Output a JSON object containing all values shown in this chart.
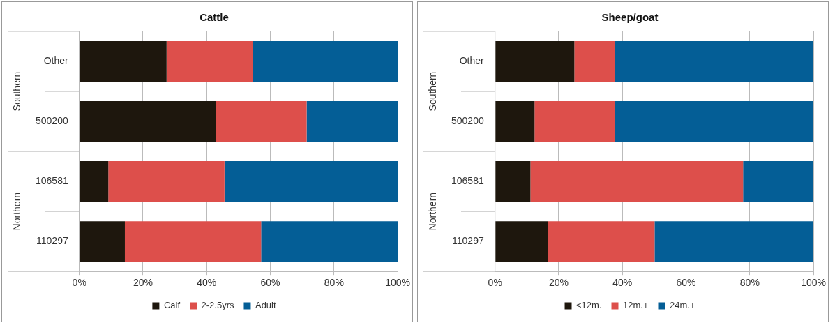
{
  "chart_data": [
    {
      "type": "bar",
      "title": "Cattle",
      "orientation": "horizontal",
      "stacked": true,
      "categories": [
        "Other",
        "500200",
        "106581",
        "110297"
      ],
      "series": [
        {
          "name": "Calf",
          "color": "#1e170d",
          "values": [
            27.4,
            42.9,
            9.1,
            14.3
          ]
        },
        {
          "name": "2-2.5yrs",
          "color": "#dd4f4b",
          "values": [
            27.1,
            28.5,
            36.5,
            42.8
          ]
        },
        {
          "name": "Adult",
          "color": "#045e96",
          "values": [
            45.5,
            28.6,
            54.4,
            42.9
          ]
        }
      ],
      "xlim": [
        0,
        100
      ],
      "xticks": [
        {
          "value": 0,
          "label": "0%"
        },
        {
          "value": 20,
          "label": "20%"
        },
        {
          "value": 40,
          "label": "40%"
        },
        {
          "value": 60,
          "label": "60%"
        },
        {
          "value": 80,
          "label": "80%"
        },
        {
          "value": 100,
          "label": "100%"
        }
      ],
      "annotations": [
        "Southern",
        "Northern"
      ],
      "grid": "x",
      "legend": "bottom"
    },
    {
      "type": "bar",
      "title": "Sheep/goat",
      "orientation": "horizontal",
      "stacked": true,
      "categories": [
        "Other",
        "500200",
        "106581",
        "110297"
      ],
      "series": [
        {
          "name": "<12m.",
          "color": "#1e170d",
          "values": [
            24.9,
            12.4,
            11.1,
            16.7
          ]
        },
        {
          "name": "12m.+",
          "color": "#dd4f4b",
          "values": [
            12.7,
            25.2,
            66.8,
            33.4
          ]
        },
        {
          "name": "24m.+",
          "color": "#045e96",
          "values": [
            62.4,
            62.4,
            22.1,
            49.9
          ]
        }
      ],
      "xlim": [
        0,
        100
      ],
      "xticks": [
        {
          "value": 0,
          "label": "0%"
        },
        {
          "value": 20,
          "label": "20%"
        },
        {
          "value": 40,
          "label": "40%"
        },
        {
          "value": 60,
          "label": "60%"
        },
        {
          "value": 80,
          "label": "80%"
        },
        {
          "value": 100,
          "label": "100%"
        }
      ],
      "annotations": [
        "Southern",
        "Northern"
      ],
      "grid": "x",
      "legend": "bottom"
    }
  ]
}
